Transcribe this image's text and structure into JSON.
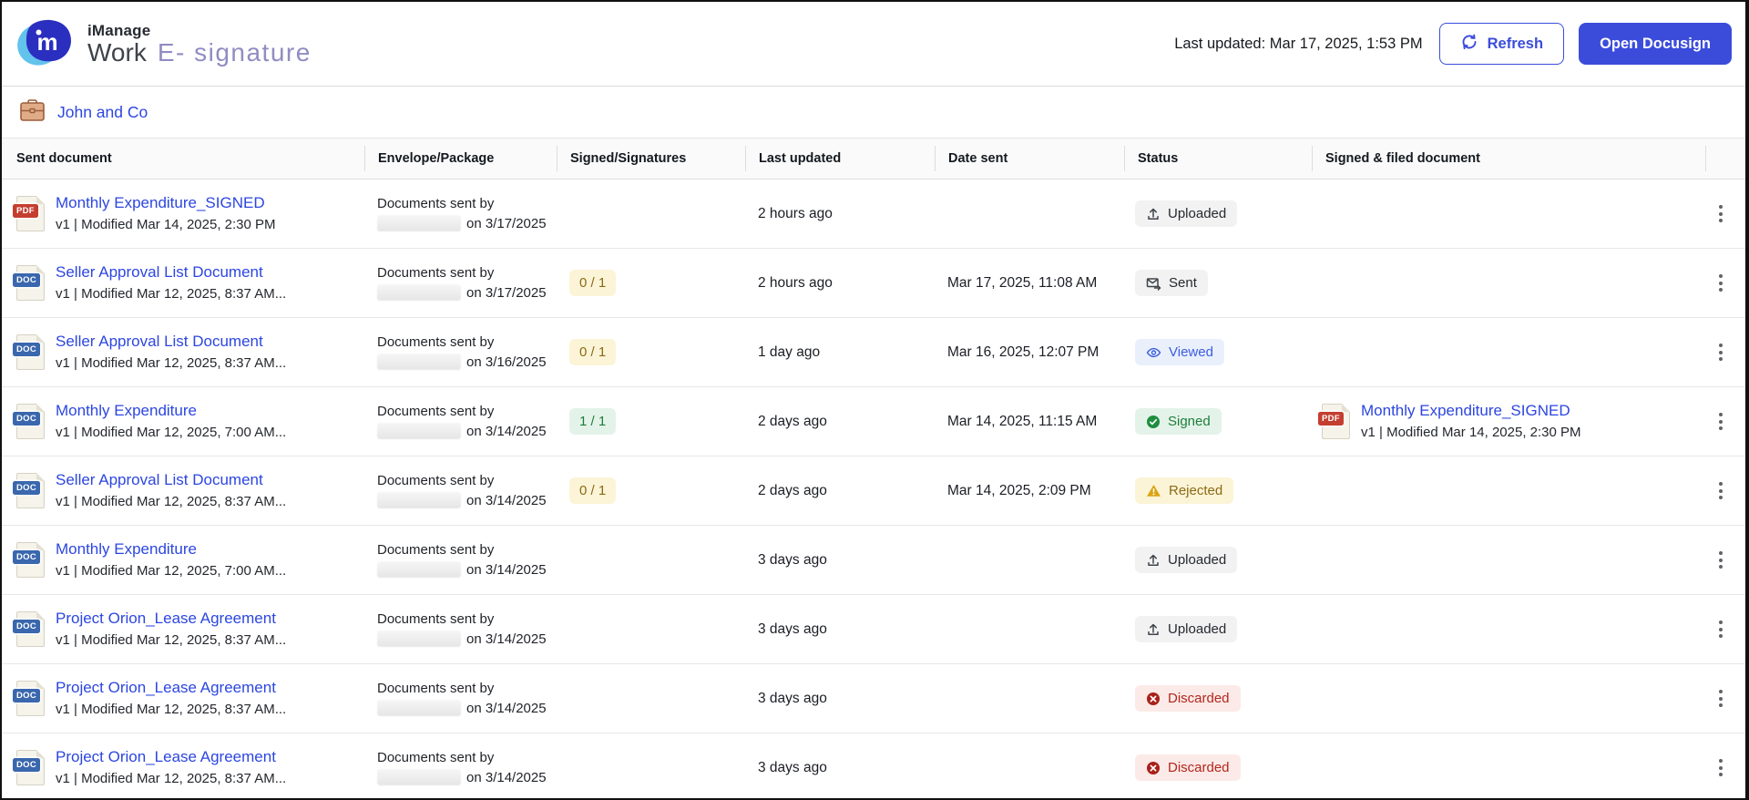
{
  "colors": {
    "accent": "#3b4cdb",
    "link": "#2c46e0",
    "logo_light_blue": "#63c3ec",
    "logo_dark_blue": "#2b2fc0",
    "status_neutral_bg": "#f2f2f3",
    "status_viewed_bg": "#e9f0fc",
    "status_signed_bg": "#e4f3e9",
    "status_rejected_bg": "#fcf4d7",
    "status_discarded_bg": "#fbeae7"
  },
  "header": {
    "brand": {
      "product": "iManage",
      "app": "Work",
      "suffix": "E- signature"
    },
    "last_updated": "Last updated: Mar 17, 2025, 1:53 PM",
    "refresh_label": "Refresh",
    "open_docusign_label": "Open Docusign"
  },
  "workspace": {
    "name": "John and Co",
    "icon": "briefcase-icon"
  },
  "table": {
    "columns": [
      "Sent document",
      "Envelope/Package",
      "Signed/Signatures",
      "Last updated",
      "Date sent",
      "Status",
      "Signed & filed document"
    ],
    "rows": [
      {
        "document": {
          "file_type": "PDF",
          "title": "Monthly Expenditure_SIGNED",
          "meta": "v1 | Modified Mar 14, 2025, 2:30 PM"
        },
        "envelope": {
          "line1": "Documents sent by",
          "redacted": true,
          "sent_on": "on 3/17/2025"
        },
        "signatures": null,
        "last_updated": "2 hours ago",
        "date_sent": "",
        "status": {
          "label": "Uploaded",
          "type": "neutral",
          "icon": "upload-icon"
        },
        "signed_doc": null
      },
      {
        "document": {
          "file_type": "DOC",
          "title": "Seller Approval List Document",
          "meta": "v1 | Modified Mar 12, 2025, 8:37 AM..."
        },
        "envelope": {
          "line1": "Documents sent by",
          "redacted": true,
          "sent_on": "on 3/17/2025"
        },
        "signatures": {
          "value": "0 / 1",
          "tone": "warn"
        },
        "last_updated": "2 hours ago",
        "date_sent": "Mar 17, 2025, 11:08 AM",
        "status": {
          "label": "Sent",
          "type": "neutral",
          "icon": "envelope-send-icon"
        },
        "signed_doc": null
      },
      {
        "document": {
          "file_type": "DOC",
          "title": "Seller Approval List Document",
          "meta": "v1 | Modified Mar 12, 2025, 8:37 AM..."
        },
        "envelope": {
          "line1": "Documents sent by",
          "redacted": true,
          "sent_on": "on 3/16/2025"
        },
        "signatures": {
          "value": "0 / 1",
          "tone": "warn"
        },
        "last_updated": "1 day ago",
        "date_sent": "Mar 16, 2025, 12:07 PM",
        "status": {
          "label": "Viewed",
          "type": "viewed",
          "icon": "eye-icon"
        },
        "signed_doc": null
      },
      {
        "document": {
          "file_type": "DOC",
          "title": "Monthly Expenditure",
          "meta": "v1 | Modified Mar 12, 2025, 7:00 AM..."
        },
        "envelope": {
          "line1": "Documents sent by",
          "redacted": true,
          "sent_on": "on 3/14/2025"
        },
        "signatures": {
          "value": "1 / 1",
          "tone": "ok"
        },
        "last_updated": "2 days ago",
        "date_sent": "Mar 14, 2025, 11:15 AM",
        "status": {
          "label": "Signed",
          "type": "signed",
          "icon": "check-circle-icon"
        },
        "signed_doc": {
          "file_type": "PDF",
          "title": "Monthly Expenditure_SIGNED",
          "meta": "v1 | Modified Mar 14, 2025, 2:30 PM"
        }
      },
      {
        "document": {
          "file_type": "DOC",
          "title": "Seller Approval List Document",
          "meta": "v1 | Modified Mar 12, 2025, 8:37 AM..."
        },
        "envelope": {
          "line1": "Documents sent by",
          "redacted": true,
          "sent_on": "on 3/14/2025"
        },
        "signatures": {
          "value": "0 / 1",
          "tone": "warn"
        },
        "last_updated": "2 days ago",
        "date_sent": "Mar 14, 2025, 2:09 PM",
        "status": {
          "label": "Rejected",
          "type": "rejected",
          "icon": "warning-triangle-icon"
        },
        "signed_doc": null
      },
      {
        "document": {
          "file_type": "DOC",
          "title": "Monthly Expenditure",
          "meta": "v1 | Modified Mar 12, 2025, 7:00 AM..."
        },
        "envelope": {
          "line1": "Documents sent by",
          "redacted": true,
          "sent_on": "on 3/14/2025"
        },
        "signatures": null,
        "last_updated": "3 days ago",
        "date_sent": "",
        "status": {
          "label": "Uploaded",
          "type": "neutral",
          "icon": "upload-icon"
        },
        "signed_doc": null
      },
      {
        "document": {
          "file_type": "DOC",
          "title": "Project Orion_Lease Agreement",
          "meta": "v1 | Modified Mar 12, 2025, 8:37 AM..."
        },
        "envelope": {
          "line1": "Documents sent by",
          "redacted": true,
          "sent_on": "on 3/14/2025"
        },
        "signatures": null,
        "last_updated": "3 days ago",
        "date_sent": "",
        "status": {
          "label": "Uploaded",
          "type": "neutral",
          "icon": "upload-icon"
        },
        "signed_doc": null
      },
      {
        "document": {
          "file_type": "DOC",
          "title": "Project Orion_Lease Agreement",
          "meta": "v1 | Modified Mar 12, 2025, 8:37 AM..."
        },
        "envelope": {
          "line1": "Documents sent by",
          "redacted": true,
          "sent_on": "on 3/14/2025"
        },
        "signatures": null,
        "last_updated": "3 days ago",
        "date_sent": "",
        "status": {
          "label": "Discarded",
          "type": "discarded",
          "icon": "x-circle-icon"
        },
        "signed_doc": null
      },
      {
        "document": {
          "file_type": "DOC",
          "title": "Project Orion_Lease Agreement",
          "meta": "v1 | Modified Mar 12, 2025, 8:37 AM..."
        },
        "envelope": {
          "line1": "Documents sent by",
          "redacted": true,
          "sent_on": "on 3/14/2025"
        },
        "signatures": null,
        "last_updated": "3 days ago",
        "date_sent": "",
        "status": {
          "label": "Discarded",
          "type": "discarded",
          "icon": "x-circle-icon"
        },
        "signed_doc": null
      }
    ]
  }
}
